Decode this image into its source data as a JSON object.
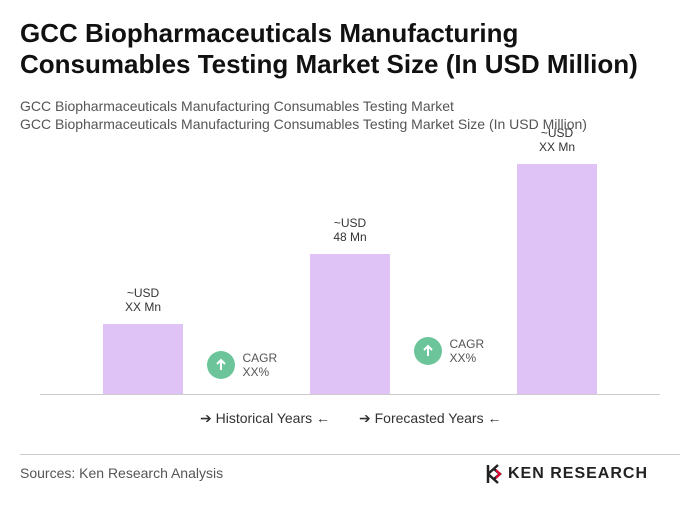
{
  "chart_data": {
    "type": "bar",
    "title": "GCC Biopharmaceuticals Manufacturing Consumables Testing Market Size (In USD Million)",
    "subtitles": [
      "GCC Biopharmaceuticals Manufacturing Consumables Testing Market",
      "GCC Biopharmaceuticals Manufacturing Consumables Testing Market Size (In USD Million)"
    ],
    "categories": [
      null,
      null,
      null
    ],
    "values": [
      24,
      48,
      79
    ],
    "value_labels": [
      "~USD\nXX Mn",
      "~USD\n48 Mn",
      "~USD\nXX Mn"
    ],
    "color": "#dfc2f6",
    "ylim": [
      0,
      80
    ],
    "annotations": [
      "CAGR\nXX%",
      "CAGR\nXX%"
    ],
    "annotation_color": "#6cc59a",
    "periods": [
      "Historical Years",
      "Forecasted Years"
    ],
    "source": "Sources: Ken Research Analysis",
    "logo": "KEN RESEARCH"
  }
}
